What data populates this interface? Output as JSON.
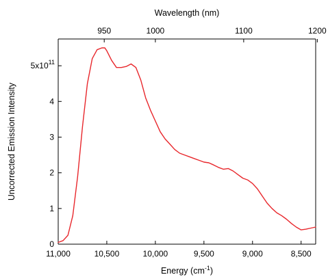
{
  "chart_data": {
    "type": "line",
    "x_axis": {
      "label": "Energy (cm",
      "label_sup": "-1",
      "label_end": ")",
      "range": [
        11000,
        8350
      ],
      "ticks": [
        {
          "value": 11000,
          "label": "11,000"
        },
        {
          "value": 10500,
          "label": "10,500"
        },
        {
          "value": 10000,
          "label": "10,000"
        },
        {
          "value": 9500,
          "label": "9,500"
        },
        {
          "value": 9000,
          "label": "9,000"
        },
        {
          "value": 8500,
          "label": "8,500"
        }
      ]
    },
    "x2_axis": {
      "label": "Wavelength (nm)",
      "ticks": [
        {
          "value": 950,
          "label": "950"
        },
        {
          "value": 1000,
          "label": "1000"
        },
        {
          "value": 1100,
          "label": "1100"
        },
        {
          "value": 1200,
          "label": "1200"
        }
      ]
    },
    "y_axis": {
      "label": "Uncorrected Emission Intensity",
      "range": [
        0,
        5.75
      ],
      "ticks": [
        {
          "value": 0,
          "label": "0"
        },
        {
          "value": 1,
          "label": "1"
        },
        {
          "value": 2,
          "label": "2"
        },
        {
          "value": 3,
          "label": "3"
        },
        {
          "value": 4,
          "label": "4"
        },
        {
          "value": 5,
          "label": "5x10",
          "sup": "11"
        }
      ]
    },
    "series": [
      {
        "color": "#e8262b",
        "x": [
          11000,
          10950,
          10900,
          10850,
          10800,
          10750,
          10700,
          10650,
          10600,
          10550,
          10520,
          10500,
          10450,
          10400,
          10350,
          10300,
          10250,
          10200,
          10150,
          10100,
          10050,
          10000,
          9950,
          9900,
          9850,
          9800,
          9750,
          9700,
          9650,
          9600,
          9550,
          9500,
          9450,
          9400,
          9350,
          9300,
          9250,
          9200,
          9150,
          9100,
          9050,
          9000,
          8950,
          8900,
          8850,
          8800,
          8750,
          8700,
          8650,
          8600,
          8550,
          8500,
          8450,
          8400,
          8350
        ],
        "y": [
          0.05,
          0.1,
          0.25,
          0.8,
          1.9,
          3.3,
          4.5,
          5.2,
          5.45,
          5.5,
          5.5,
          5.42,
          5.15,
          4.95,
          4.95,
          4.98,
          5.05,
          4.95,
          4.6,
          4.1,
          3.75,
          3.45,
          3.15,
          2.95,
          2.8,
          2.65,
          2.55,
          2.5,
          2.45,
          2.4,
          2.35,
          2.3,
          2.28,
          2.22,
          2.15,
          2.1,
          2.12,
          2.05,
          1.95,
          1.85,
          1.8,
          1.7,
          1.55,
          1.35,
          1.15,
          1.0,
          0.88,
          0.8,
          0.7,
          0.58,
          0.48,
          0.4,
          0.42,
          0.45,
          0.48
        ]
      }
    ]
  }
}
